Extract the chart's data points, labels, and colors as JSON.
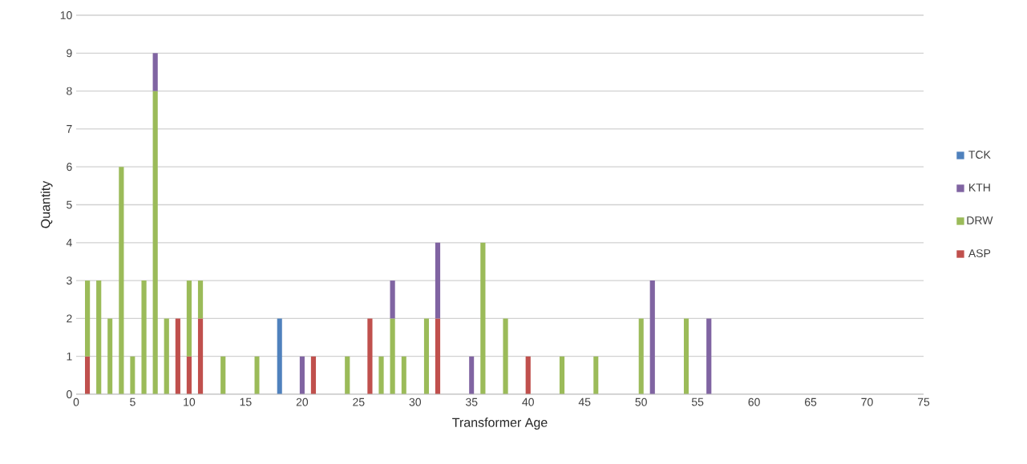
{
  "chart_data": {
    "type": "bar",
    "stacked": true,
    "xlabel": "Transformer Age",
    "ylabel": "Quantity",
    "x": [
      1,
      2,
      3,
      4,
      5,
      6,
      7,
      8,
      9,
      10,
      11,
      13,
      16,
      18,
      20,
      21,
      24,
      26,
      27,
      28,
      29,
      31,
      32,
      35,
      36,
      38,
      40,
      43,
      46,
      50,
      51,
      54,
      56
    ],
    "series": [
      {
        "name": "ASP",
        "color": "#c0504d",
        "values": [
          1,
          null,
          null,
          null,
          null,
          null,
          null,
          null,
          2,
          1,
          2,
          null,
          null,
          null,
          null,
          1,
          null,
          2,
          null,
          null,
          null,
          null,
          2,
          null,
          null,
          null,
          1,
          null,
          null,
          null,
          null,
          null,
          null
        ]
      },
      {
        "name": "DRW",
        "color": "#9bbb59",
        "values": [
          2,
          3,
          2,
          6,
          1,
          3,
          8,
          2,
          null,
          2,
          1,
          1,
          1,
          null,
          null,
          null,
          1,
          null,
          1,
          2,
          1,
          2,
          null,
          null,
          4,
          2,
          null,
          1,
          1,
          2,
          null,
          2,
          null
        ]
      },
      {
        "name": "KTH",
        "color": "#8064a2",
        "values": [
          null,
          null,
          null,
          null,
          null,
          null,
          1,
          null,
          null,
          null,
          null,
          null,
          null,
          null,
          1,
          null,
          null,
          null,
          null,
          1,
          null,
          null,
          2,
          1,
          null,
          null,
          null,
          null,
          null,
          null,
          3,
          null,
          2
        ]
      },
      {
        "name": "TCK",
        "color": "#4f81bd",
        "values": [
          null,
          null,
          null,
          null,
          null,
          null,
          null,
          null,
          null,
          null,
          null,
          null,
          null,
          2,
          null,
          null,
          null,
          null,
          null,
          null,
          null,
          null,
          null,
          null,
          null,
          null,
          null,
          null,
          null,
          null,
          null,
          null,
          null
        ]
      }
    ],
    "xlim": [
      0,
      75
    ],
    "xticks": [
      0,
      5,
      10,
      15,
      20,
      25,
      30,
      35,
      40,
      45,
      50,
      55,
      60,
      65,
      70,
      75
    ],
    "ylim": [
      0,
      10
    ],
    "yticks": [
      0,
      1,
      2,
      3,
      4,
      5,
      6,
      7,
      8,
      9,
      10
    ],
    "grid": "y",
    "legend": "right"
  }
}
